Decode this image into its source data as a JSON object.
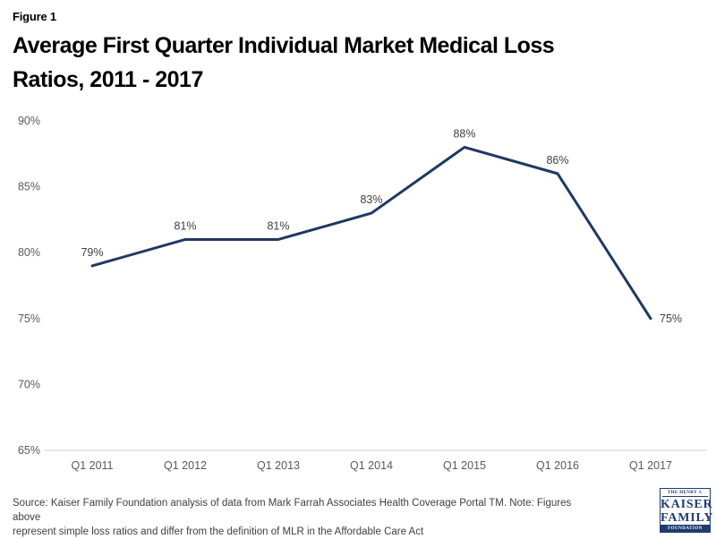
{
  "figure_label": "Figure 1",
  "title": "Average First Quarter Individual Market Medical Loss\nRatios, 2011 - 2017",
  "source_note": "Source: Kaiser Family Foundation analysis of data from Mark Farrah Associates Health Coverage Portal TM. Note: Figures above\nrepresent simple loss ratios and differ from the definition of MLR in the Affordable Care Act",
  "logo": {
    "line1": "THE HENRY J.",
    "line2": "KAISER",
    "line3": "FAMILY",
    "line4": "FOUNDATION",
    "navy": "#1E3C6E"
  },
  "chart_data": {
    "type": "line",
    "title": "Average First Quarter Individual Market Medical Loss Ratios, 2011 - 2017",
    "categories": [
      "Q1 2011",
      "Q1 2012",
      "Q1 2013",
      "Q1 2014",
      "Q1 2015",
      "Q1 2016",
      "Q1 2017"
    ],
    "series": [
      {
        "name": "Average first quarter individual market medical loss ratio",
        "values": [
          79,
          81,
          81,
          83,
          88,
          86,
          75
        ],
        "point_labels": [
          "79%",
          "81%",
          "81%",
          "83%",
          "88%",
          "86%",
          "75%"
        ]
      }
    ],
    "xlabel": "",
    "ylabel": "",
    "ylim": [
      65,
      90
    ],
    "ytick_step": 5,
    "ytick_labels": [
      "65%",
      "70%",
      "75%",
      "80%",
      "85%",
      "90%"
    ],
    "line_color": "#1F3864",
    "axis_line_color": "#D9D9D9",
    "grid": false,
    "legend": "none"
  }
}
